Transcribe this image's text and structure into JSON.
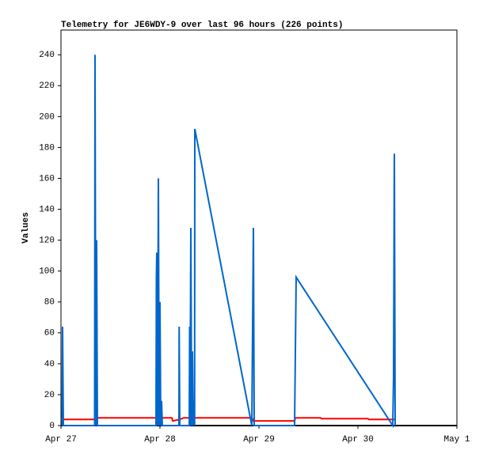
{
  "chart_data": {
    "type": "line",
    "title": "Telemetry for JE6WDY-9 over last 96 hours (226 points)",
    "y_label": "Values",
    "xlim": [
      0,
      4
    ],
    "xticks": [
      {
        "value": 0,
        "label": "Apr 27"
      },
      {
        "value": 1,
        "label": "Apr 28"
      },
      {
        "value": 2,
        "label": "Apr 29"
      },
      {
        "value": 3,
        "label": "Apr 30"
      },
      {
        "value": 4,
        "label": "May 1"
      }
    ],
    "ylim": [
      0,
      256
    ],
    "yticks": [
      0,
      20,
      40,
      60,
      80,
      100,
      120,
      140,
      160,
      180,
      200,
      220,
      240
    ],
    "grid": false,
    "series": [
      {
        "color": "#ff0000",
        "x": [
          0,
          0.34,
          0.352,
          1.12,
          1.13,
          1.2,
          1.24,
          1.928,
          1.944,
          2.36,
          2.368,
          2.624,
          2.632,
          3.1,
          3.11,
          3.376
        ],
        "values": [
          4,
          4,
          5,
          5,
          3,
          4,
          5,
          5,
          3,
          3,
          5,
          5,
          4.5,
          4.5,
          4,
          4
        ]
      },
      {
        "color": "#0066cc",
        "x": [
          0.012,
          0.016,
          0.024,
          0.34,
          0.344,
          0.352,
          0.36,
          0.368,
          0.96,
          0.964,
          0.968,
          0.976,
          0.984,
          0.992,
          1.0,
          1.008,
          1.016,
          1.024,
          1.192,
          1.194,
          1.2,
          1.296,
          1.3,
          1.304,
          1.312,
          1.32,
          1.328,
          1.336,
          1.344,
          1.35,
          1.352,
          1.928,
          1.936,
          1.944,
          1.952,
          2.36,
          2.368,
          2.376,
          3.352,
          3.36,
          3.368,
          3.376
        ],
        "values": [
          0,
          64,
          0,
          0,
          240,
          0,
          120,
          0,
          0,
          96,
          112,
          0,
          160,
          0,
          80,
          0,
          16,
          0,
          0,
          64,
          0,
          0,
          64,
          0,
          128,
          0,
          48,
          0,
          16,
          0,
          192,
          0,
          64,
          128,
          0,
          0,
          48,
          96,
          0,
          32,
          176,
          0
        ]
      }
    ]
  }
}
